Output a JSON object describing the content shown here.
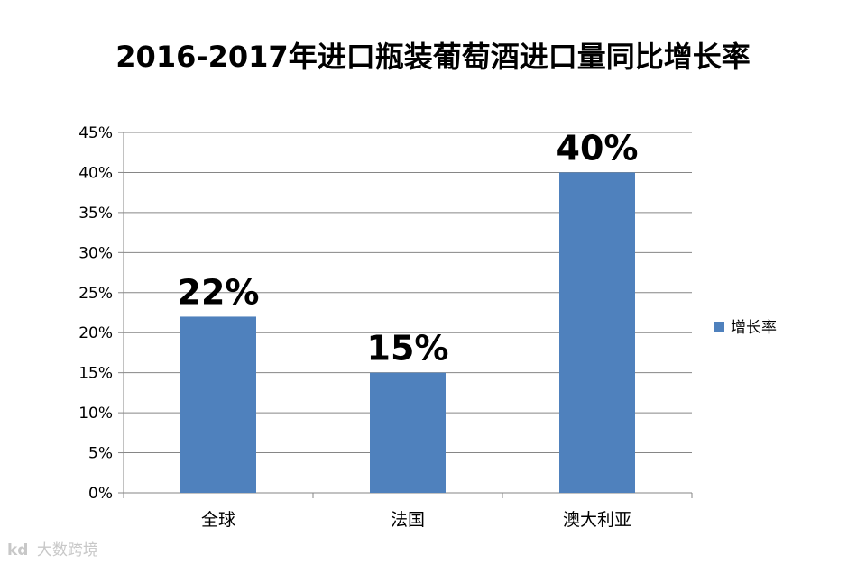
{
  "chart_data": {
    "type": "bar",
    "title": "2016-2017年进口瓶装葡萄酒进口量同比增长率",
    "categories": [
      "全球",
      "法国",
      "澳大利亚"
    ],
    "series": [
      {
        "name": "增长率",
        "values": [
          22,
          15,
          40
        ],
        "color": "#4F81BD"
      }
    ],
    "data_labels": [
      "22%",
      "15%",
      "40%"
    ],
    "y_ticks": [
      "0%",
      "5%",
      "10%",
      "15%",
      "20%",
      "25%",
      "30%",
      "35%",
      "40%",
      "45%"
    ],
    "ylim": [
      0,
      45
    ],
    "y_unit": "%",
    "grid": true,
    "legend_position": "right"
  },
  "watermark": {
    "logo": "kd",
    "text": "大数跨境"
  }
}
